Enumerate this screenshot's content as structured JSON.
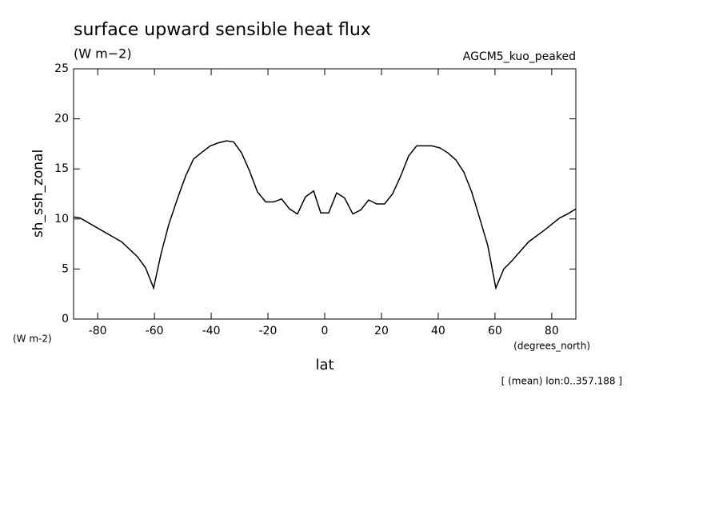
{
  "chart_data": {
    "type": "line",
    "title": "surface upward sensible heat flux",
    "subtitle": "(W m−2)",
    "run_label": "AGCM5_kuo_peaked",
    "y_label": "sh_ssh_zonal",
    "y_units": "(W m-2)",
    "x_units": "(degrees_north)",
    "x_label": "lat",
    "note": "[ (mean) lon:0..357.188 ]",
    "xlim": [
      -88.5,
      88.5
    ],
    "ylim": [
      0,
      25
    ],
    "xticks": [
      -80,
      -60,
      -40,
      -20,
      0,
      20,
      40,
      60,
      80
    ],
    "yticks": [
      0,
      5,
      10,
      15,
      20,
      25
    ],
    "series": [
      {
        "color": "#000000",
        "x": [
          -88.5,
          -86.2,
          -71.5,
          -65.9,
          -63.1,
          -60.3,
          -57.7,
          -54.9,
          -51.8,
          -49.0,
          -46.2,
          -43.1,
          -40.3,
          -37.5,
          -34.6,
          -32.1,
          -29.3,
          -26.5,
          -23.7,
          -20.8,
          -18.0,
          -15.2,
          -12.4,
          -9.6,
          -6.8,
          -3.9,
          -1.4,
          1.4,
          4.2,
          7.0,
          9.9,
          12.7,
          15.5,
          18.3,
          21.1,
          23.9,
          26.8,
          29.6,
          32.4,
          34.9,
          37.7,
          40.6,
          43.4,
          46.2,
          49.0,
          51.8,
          54.6,
          57.5,
          60.3,
          63.1,
          65.9,
          71.8,
          77.5,
          82.8,
          85.6,
          88.5
        ],
        "values": [
          10.2,
          10.1,
          7.7,
          6.2,
          5.1,
          3.1,
          6.5,
          9.5,
          12.1,
          14.3,
          16.0,
          16.7,
          17.3,
          17.6,
          17.8,
          17.7,
          16.6,
          14.8,
          12.7,
          11.7,
          11.7,
          12.0,
          11.0,
          10.5,
          12.2,
          12.8,
          10.6,
          10.6,
          12.6,
          12.1,
          10.5,
          10.9,
          11.9,
          11.5,
          11.5,
          12.5,
          14.3,
          16.3,
          17.3,
          17.3,
          17.3,
          17.1,
          16.6,
          15.9,
          14.7,
          12.7,
          10.1,
          7.3,
          3.1,
          5.0,
          5.8,
          7.7,
          8.9,
          10.1,
          10.5,
          11.0
        ]
      }
    ]
  }
}
